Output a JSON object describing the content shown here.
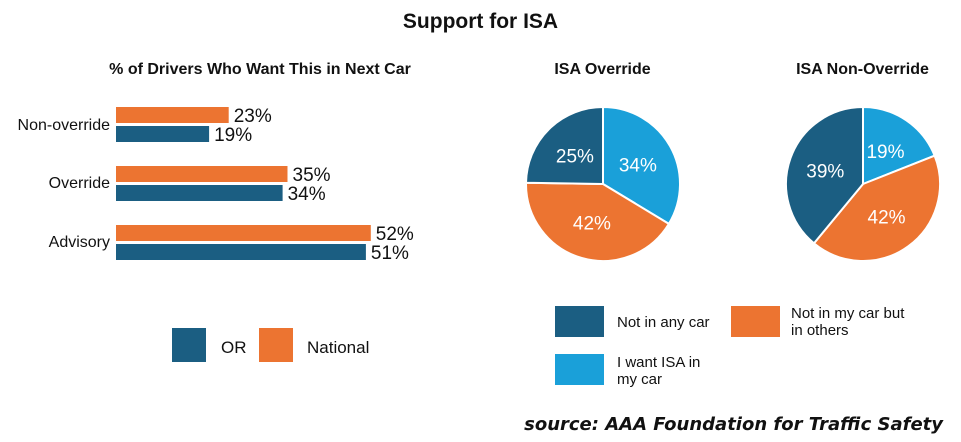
{
  "title": "Support for ISA",
  "source": "source: AAA Foundation for Traffic Safety",
  "colors": {
    "or": "#1b5e82",
    "national": "#ec7431",
    "want": "#1aa0d9"
  },
  "chart_data": [
    {
      "type": "bar",
      "orientation": "horizontal",
      "title": "% of Drivers Who Want This in Next Car",
      "categories": [
        "Non-override",
        "Override",
        "Advisory"
      ],
      "series": [
        {
          "name": "National",
          "color": "#ec7431",
          "values": [
            23,
            35,
            52
          ],
          "labels": [
            "23%",
            "35%",
            "52%"
          ]
        },
        {
          "name": "OR",
          "color": "#1b5e82",
          "values": [
            19,
            34,
            51
          ],
          "labels": [
            "19%",
            "34%",
            "51%"
          ]
        }
      ],
      "legend": [
        "OR",
        "National"
      ],
      "legend_position": "bottom"
    },
    {
      "type": "pie",
      "title": "ISA Override",
      "slices": [
        {
          "name": "I want ISA in my car",
          "value": 34,
          "label": "34%",
          "color": "#1aa0d9"
        },
        {
          "name": "Not in my car but in others",
          "value": 42,
          "label": "42%",
          "color": "#ec7431"
        },
        {
          "name": "Not in any car",
          "value": 25,
          "label": "25%",
          "color": "#1b5e82"
        }
      ]
    },
    {
      "type": "pie",
      "title": "ISA Non-Override",
      "slices": [
        {
          "name": "I want ISA in my car",
          "value": 19,
          "label": "19%",
          "color": "#1aa0d9"
        },
        {
          "name": "Not in my car but in others",
          "value": 42,
          "label": "42%",
          "color": "#ec7431"
        },
        {
          "name": "Not in any car",
          "value": 39,
          "label": "39%",
          "color": "#1b5e82"
        }
      ]
    }
  ],
  "bar_legend": {
    "or": "OR",
    "national": "National"
  },
  "pie_legend": {
    "not_any": "Not in any car",
    "not_mine_line1": "Not in my car but",
    "not_mine_line2": "in others",
    "want_line1": "I want ISA in",
    "want_line2": "my car"
  }
}
